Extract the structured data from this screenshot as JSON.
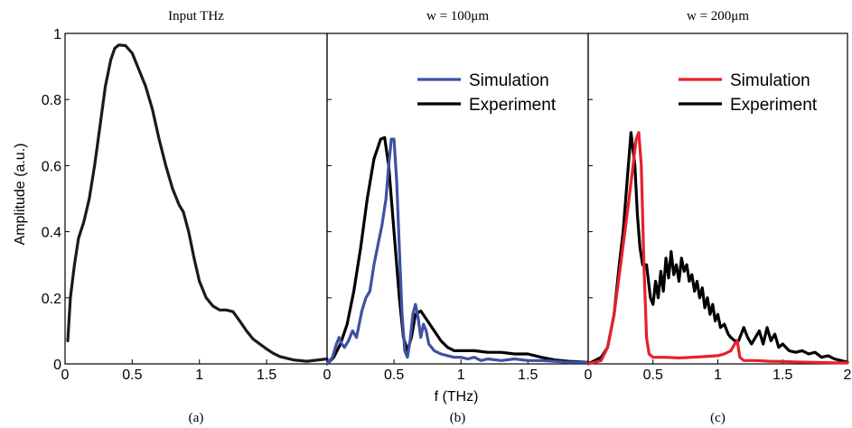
{
  "chart_data": {
    "type": "line",
    "xlabel": "f (THz)",
    "ylabel": "Amplitude (a.u.)",
    "ylim": [
      0,
      1
    ],
    "yticks": [
      "0",
      "0.2",
      "0.4",
      "0.6",
      "0.8",
      "1"
    ],
    "panels": [
      {
        "id": "a",
        "title": "Input THz",
        "caption": "(a)",
        "xlim": [
          0,
          1.95
        ],
        "xticks": [
          {
            "v": 0,
            "t": "0"
          },
          {
            "v": 0.5,
            "t": "0.5"
          },
          {
            "v": 1,
            "t": "1"
          },
          {
            "v": 1.5,
            "t": "1.5"
          }
        ],
        "legend": [],
        "series": [
          {
            "name": "",
            "color": "#1a1a1a",
            "points": [
              [
                0.02,
                0.07
              ],
              [
                0.04,
                0.2
              ],
              [
                0.07,
                0.3
              ],
              [
                0.1,
                0.38
              ],
              [
                0.14,
                0.43
              ],
              [
                0.18,
                0.5
              ],
              [
                0.22,
                0.6
              ],
              [
                0.26,
                0.72
              ],
              [
                0.3,
                0.84
              ],
              [
                0.34,
                0.92
              ],
              [
                0.37,
                0.955
              ],
              [
                0.4,
                0.965
              ],
              [
                0.45,
                0.963
              ],
              [
                0.5,
                0.94
              ],
              [
                0.55,
                0.89
              ],
              [
                0.6,
                0.84
              ],
              [
                0.65,
                0.77
              ],
              [
                0.7,
                0.68
              ],
              [
                0.75,
                0.6
              ],
              [
                0.8,
                0.53
              ],
              [
                0.85,
                0.48
              ],
              [
                0.88,
                0.46
              ],
              [
                0.92,
                0.4
              ],
              [
                0.96,
                0.32
              ],
              [
                1.0,
                0.25
              ],
              [
                1.05,
                0.2
              ],
              [
                1.1,
                0.175
              ],
              [
                1.15,
                0.163
              ],
              [
                1.2,
                0.163
              ],
              [
                1.25,
                0.158
              ],
              [
                1.3,
                0.13
              ],
              [
                1.35,
                0.1
              ],
              [
                1.4,
                0.075
              ],
              [
                1.45,
                0.06
              ],
              [
                1.5,
                0.045
              ],
              [
                1.55,
                0.032
              ],
              [
                1.6,
                0.022
              ],
              [
                1.7,
                0.012
              ],
              [
                1.8,
                0.008
              ],
              [
                1.95,
                0.015
              ]
            ]
          }
        ]
      },
      {
        "id": "b",
        "title": "w = 100μm",
        "caption": "(b)",
        "xlim": [
          0,
          1.95
        ],
        "xticks": [
          {
            "v": 0,
            "t": "0"
          },
          {
            "v": 0.5,
            "t": "0.5"
          },
          {
            "v": 1,
            "t": "1"
          },
          {
            "v": 1.5,
            "t": "1.5"
          }
        ],
        "legend": [
          {
            "label": "Simulation",
            "color": "#3f51a3"
          },
          {
            "label": "Experiment",
            "color": "#000000"
          }
        ],
        "series": [
          {
            "name": "Experiment",
            "color": "#000000",
            "points": [
              [
                0,
                0
              ],
              [
                0.05,
                0.02
              ],
              [
                0.1,
                0.06
              ],
              [
                0.15,
                0.12
              ],
              [
                0.2,
                0.22
              ],
              [
                0.25,
                0.35
              ],
              [
                0.3,
                0.5
              ],
              [
                0.35,
                0.62
              ],
              [
                0.4,
                0.68
              ],
              [
                0.43,
                0.685
              ],
              [
                0.46,
                0.6
              ],
              [
                0.5,
                0.4
              ],
              [
                0.54,
                0.2
              ],
              [
                0.57,
                0.08
              ],
              [
                0.6,
                0.04
              ],
              [
                0.63,
                0.08
              ],
              [
                0.66,
                0.15
              ],
              [
                0.7,
                0.16
              ],
              [
                0.75,
                0.13
              ],
              [
                0.8,
                0.1
              ],
              [
                0.85,
                0.07
              ],
              [
                0.9,
                0.05
              ],
              [
                0.95,
                0.04
              ],
              [
                1.0,
                0.04
              ],
              [
                1.1,
                0.04
              ],
              [
                1.2,
                0.035
              ],
              [
                1.3,
                0.035
              ],
              [
                1.4,
                0.03
              ],
              [
                1.5,
                0.03
              ],
              [
                1.6,
                0.02
              ],
              [
                1.7,
                0.012
              ],
              [
                1.8,
                0.008
              ],
              [
                1.95,
                0.005
              ]
            ]
          },
          {
            "name": "Simulation",
            "color": "#3f51a3",
            "points": [
              [
                0,
                0
              ],
              [
                0.04,
                0.02
              ],
              [
                0.07,
                0.06
              ],
              [
                0.09,
                0.08
              ],
              [
                0.11,
                0.06
              ],
              [
                0.13,
                0.05
              ],
              [
                0.16,
                0.07
              ],
              [
                0.19,
                0.1
              ],
              [
                0.22,
                0.08
              ],
              [
                0.26,
                0.16
              ],
              [
                0.29,
                0.2
              ],
              [
                0.32,
                0.22
              ],
              [
                0.35,
                0.3
              ],
              [
                0.38,
                0.36
              ],
              [
                0.41,
                0.42
              ],
              [
                0.44,
                0.5
              ],
              [
                0.46,
                0.6
              ],
              [
                0.48,
                0.68
              ],
              [
                0.5,
                0.68
              ],
              [
                0.52,
                0.55
              ],
              [
                0.54,
                0.35
              ],
              [
                0.56,
                0.15
              ],
              [
                0.58,
                0.04
              ],
              [
                0.6,
                0.02
              ],
              [
                0.62,
                0.07
              ],
              [
                0.64,
                0.15
              ],
              [
                0.66,
                0.18
              ],
              [
                0.68,
                0.14
              ],
              [
                0.7,
                0.08
              ],
              [
                0.72,
                0.12
              ],
              [
                0.74,
                0.1
              ],
              [
                0.76,
                0.06
              ],
              [
                0.8,
                0.04
              ],
              [
                0.85,
                0.03
              ],
              [
                0.9,
                0.025
              ],
              [
                0.95,
                0.02
              ],
              [
                1.0,
                0.02
              ],
              [
                1.05,
                0.015
              ],
              [
                1.1,
                0.02
              ],
              [
                1.15,
                0.01
              ],
              [
                1.2,
                0.015
              ],
              [
                1.3,
                0.01
              ],
              [
                1.4,
                0.015
              ],
              [
                1.5,
                0.01
              ],
              [
                1.6,
                0.01
              ],
              [
                1.7,
                0.008
              ],
              [
                1.8,
                0.005
              ],
              [
                1.95,
                0.005
              ]
            ]
          }
        ]
      },
      {
        "id": "c",
        "title": "w = 200μm",
        "caption": "(c)",
        "xlim": [
          0,
          2
        ],
        "xticks": [
          {
            "v": 0,
            "t": "0"
          },
          {
            "v": 0.5,
            "t": "0.5"
          },
          {
            "v": 1,
            "t": "1"
          },
          {
            "v": 1.5,
            "t": "1.5"
          },
          {
            "v": 2,
            "t": "2"
          }
        ],
        "legend": [
          {
            "label": "Simulation",
            "color": "#e8202a"
          },
          {
            "label": "Experiment",
            "color": "#000000"
          }
        ],
        "series": [
          {
            "name": "Experiment",
            "color": "#000000",
            "points": [
              [
                0,
                0
              ],
              [
                0.1,
                0.02
              ],
              [
                0.15,
                0.05
              ],
              [
                0.2,
                0.15
              ],
              [
                0.24,
                0.3
              ],
              [
                0.27,
                0.4
              ],
              [
                0.3,
                0.55
              ],
              [
                0.33,
                0.7
              ],
              [
                0.36,
                0.6
              ],
              [
                0.38,
                0.45
              ],
              [
                0.4,
                0.35
              ],
              [
                0.42,
                0.3
              ],
              [
                0.45,
                0.3
              ],
              [
                0.48,
                0.2
              ],
              [
                0.5,
                0.18
              ],
              [
                0.52,
                0.25
              ],
              [
                0.54,
                0.2
              ],
              [
                0.56,
                0.28
              ],
              [
                0.58,
                0.22
              ],
              [
                0.6,
                0.32
              ],
              [
                0.62,
                0.26
              ],
              [
                0.64,
                0.34
              ],
              [
                0.66,
                0.27
              ],
              [
                0.68,
                0.3
              ],
              [
                0.7,
                0.25
              ],
              [
                0.72,
                0.32
              ],
              [
                0.74,
                0.28
              ],
              [
                0.76,
                0.3
              ],
              [
                0.78,
                0.25
              ],
              [
                0.8,
                0.27
              ],
              [
                0.82,
                0.22
              ],
              [
                0.84,
                0.25
              ],
              [
                0.86,
                0.2
              ],
              [
                0.88,
                0.23
              ],
              [
                0.9,
                0.17
              ],
              [
                0.92,
                0.2
              ],
              [
                0.94,
                0.15
              ],
              [
                0.96,
                0.18
              ],
              [
                0.98,
                0.13
              ],
              [
                1.0,
                0.15
              ],
              [
                1.02,
                0.11
              ],
              [
                1.05,
                0.12
              ],
              [
                1.08,
                0.09
              ],
              [
                1.1,
                0.08
              ],
              [
                1.13,
                0.07
              ],
              [
                1.16,
                0.07
              ],
              [
                1.2,
                0.11
              ],
              [
                1.23,
                0.08
              ],
              [
                1.26,
                0.06
              ],
              [
                1.29,
                0.08
              ],
              [
                1.32,
                0.1
              ],
              [
                1.35,
                0.06
              ],
              [
                1.38,
                0.11
              ],
              [
                1.41,
                0.07
              ],
              [
                1.44,
                0.09
              ],
              [
                1.47,
                0.05
              ],
              [
                1.5,
                0.06
              ],
              [
                1.55,
                0.04
              ],
              [
                1.6,
                0.035
              ],
              [
                1.65,
                0.04
              ],
              [
                1.7,
                0.03
              ],
              [
                1.75,
                0.035
              ],
              [
                1.8,
                0.02
              ],
              [
                1.85,
                0.025
              ],
              [
                1.9,
                0.015
              ],
              [
                1.95,
                0.01
              ],
              [
                2.0,
                0.005
              ]
            ]
          },
          {
            "name": "Simulation",
            "color": "#e8202a",
            "points": [
              [
                0,
                0
              ],
              [
                0.1,
                0.01
              ],
              [
                0.15,
                0.05
              ],
              [
                0.2,
                0.15
              ],
              [
                0.25,
                0.3
              ],
              [
                0.3,
                0.45
              ],
              [
                0.34,
                0.58
              ],
              [
                0.37,
                0.68
              ],
              [
                0.39,
                0.7
              ],
              [
                0.41,
                0.6
              ],
              [
                0.43,
                0.3
              ],
              [
                0.45,
                0.08
              ],
              [
                0.47,
                0.03
              ],
              [
                0.5,
                0.02
              ],
              [
                0.6,
                0.02
              ],
              [
                0.7,
                0.018
              ],
              [
                0.8,
                0.02
              ],
              [
                0.9,
                0.022
              ],
              [
                1.0,
                0.025
              ],
              [
                1.05,
                0.03
              ],
              [
                1.1,
                0.04
              ],
              [
                1.13,
                0.06
              ],
              [
                1.15,
                0.07
              ],
              [
                1.17,
                0.02
              ],
              [
                1.2,
                0.01
              ],
              [
                1.3,
                0.01
              ],
              [
                1.4,
                0.008
              ],
              [
                1.5,
                0.007
              ],
              [
                1.6,
                0.006
              ],
              [
                1.7,
                0.005
              ],
              [
                1.8,
                0.004
              ],
              [
                1.9,
                0.003
              ],
              [
                2.0,
                0.003
              ]
            ]
          }
        ]
      }
    ]
  }
}
